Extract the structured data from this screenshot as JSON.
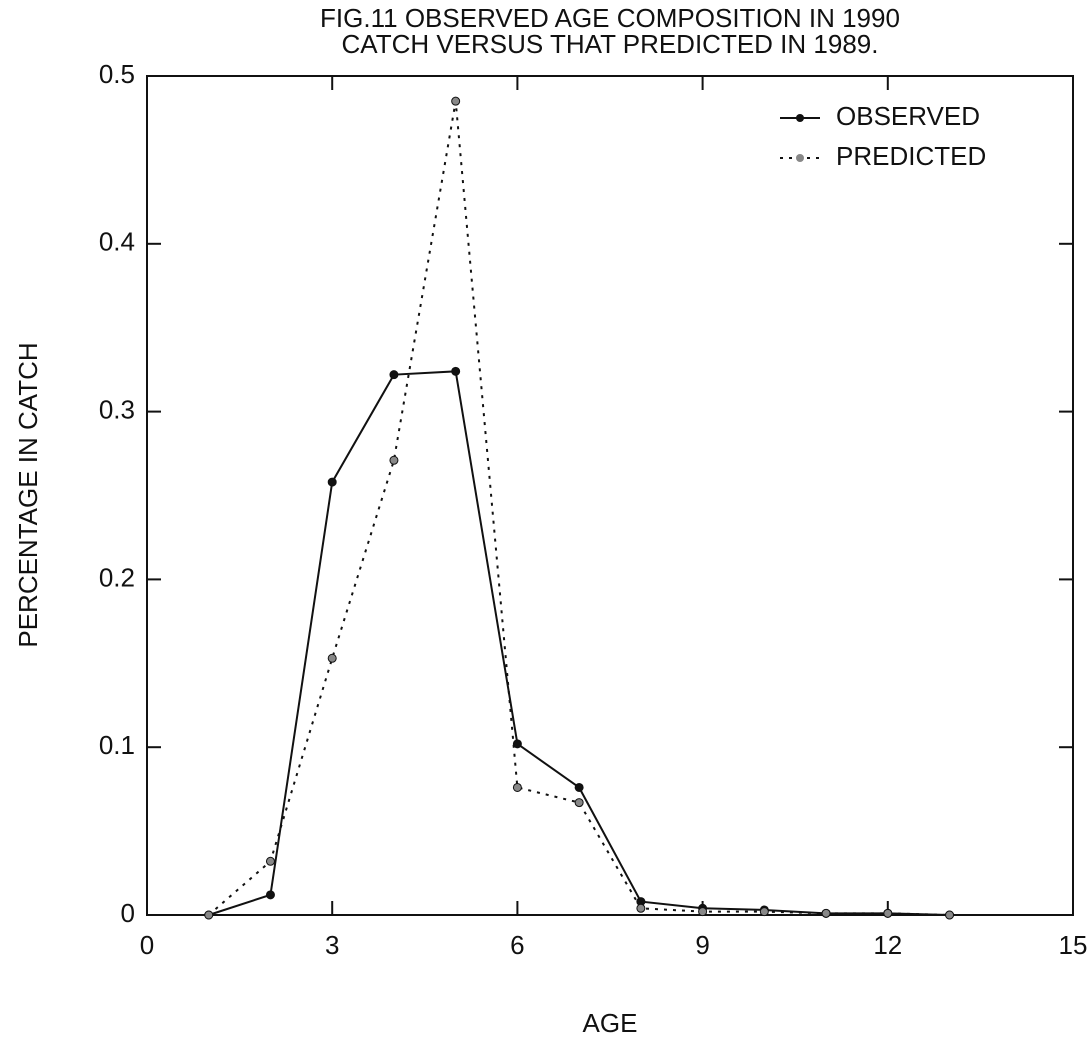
{
  "chart_data": {
    "type": "line",
    "title": [
      "FIG.11 OBSERVED AGE COMPOSITION IN 1990",
      "CATCH VERSUS THAT PREDICTED IN 1989."
    ],
    "x_label": "AGE",
    "y_label": "PERCENTAGE IN CATCH",
    "x": [
      1,
      2,
      3,
      4,
      5,
      6,
      7,
      8,
      9,
      10,
      11,
      12,
      13
    ],
    "series": [
      {
        "name": "OBSERVED",
        "color": "#111111",
        "dash": "solid",
        "values": [
          0,
          0.012,
          0.258,
          0.322,
          0.324,
          0.102,
          0.076,
          0.008,
          0.004,
          0.003,
          0.001,
          0.001,
          0
        ]
      },
      {
        "name": "PREDICTED",
        "color": "#111111",
        "dash": "dotted",
        "values": [
          0,
          0.032,
          0.153,
          0.271,
          0.485,
          0.076,
          0.067,
          0.004,
          0.002,
          0.002,
          0.001,
          0.001,
          0
        ]
      }
    ],
    "xlim": [
      0,
      15
    ],
    "xticks": [
      0,
      3,
      6,
      9,
      12,
      15
    ],
    "ylim": [
      0,
      0.5
    ],
    "yticks": [
      0,
      0.1,
      0.2,
      0.3,
      0.4,
      0.5
    ],
    "legend": "upper right"
  }
}
